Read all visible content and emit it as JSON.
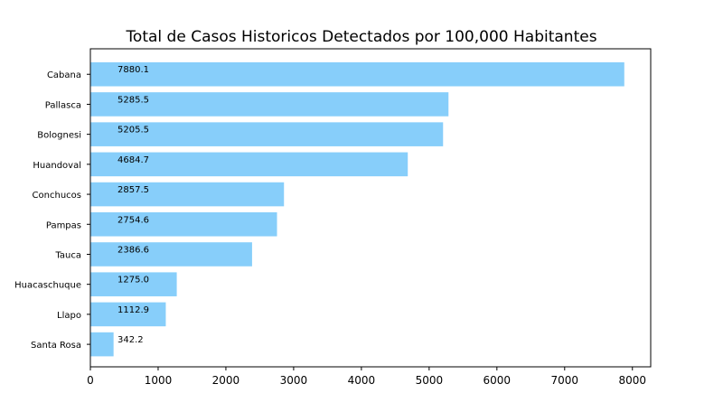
{
  "chart_data": {
    "type": "bar",
    "orientation": "horizontal",
    "title": "Total de Casos Historicos Detectados por 100,000 Habitantes",
    "xlabel": "",
    "ylabel": "",
    "categories": [
      "Cabana",
      "Pallasca",
      "Bolognesi",
      "Huandoval",
      "Conchucos",
      "Pampas",
      "Tauca",
      "Huacaschuque",
      "Llapo",
      "Santa Rosa"
    ],
    "values": [
      7880.1,
      5285.5,
      5205.5,
      4684.7,
      2857.5,
      2754.6,
      2386.6,
      1275.0,
      1112.9,
      342.2
    ],
    "value_labels": [
      "7880.1",
      "5285.5",
      "5205.5",
      "4684.7",
      "2857.5",
      "2754.6",
      "2386.6",
      "1275.0",
      "1112.9",
      "342.2"
    ],
    "xlim": [
      0,
      8270
    ],
    "xticks": [
      0,
      1000,
      2000,
      3000,
      4000,
      5000,
      6000,
      7000,
      8000
    ],
    "xtick_labels": [
      "0",
      "1000",
      "2000",
      "3000",
      "4000",
      "5000",
      "6000",
      "7000",
      "8000"
    ],
    "bar_color": "#87CEFA",
    "grid": false
  }
}
